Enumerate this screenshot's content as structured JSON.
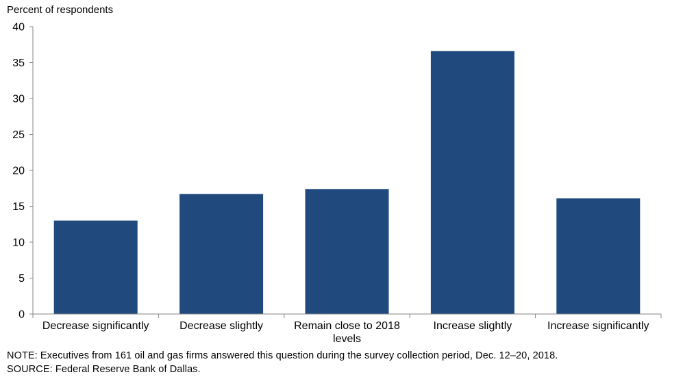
{
  "chart_data": {
    "type": "bar",
    "title": "",
    "ylabel": "Percent of respondents",
    "xlabel": "",
    "ylim": [
      0,
      40
    ],
    "yticks": [
      0,
      5,
      10,
      15,
      20,
      25,
      30,
      35,
      40
    ],
    "categories": [
      [
        "Decrease significantly"
      ],
      [
        "Decrease slightly"
      ],
      [
        "Remain close to 2018",
        "levels"
      ],
      [
        "Increase slightly"
      ],
      [
        "Increase significantly"
      ]
    ],
    "values": [
      13.0,
      16.7,
      17.4,
      36.6,
      16.1
    ],
    "bar_color": "#204a7d",
    "grid": false,
    "legend": "none"
  },
  "footer": {
    "note": "NOTE:  Executives  from  161  oil  and  gas  firms  answered  this  question  during  the  survey  collection  period,  Dec.  12–20,  2018.",
    "source": "SOURCE:  Federal  Reserve  Bank  of  Dallas."
  }
}
